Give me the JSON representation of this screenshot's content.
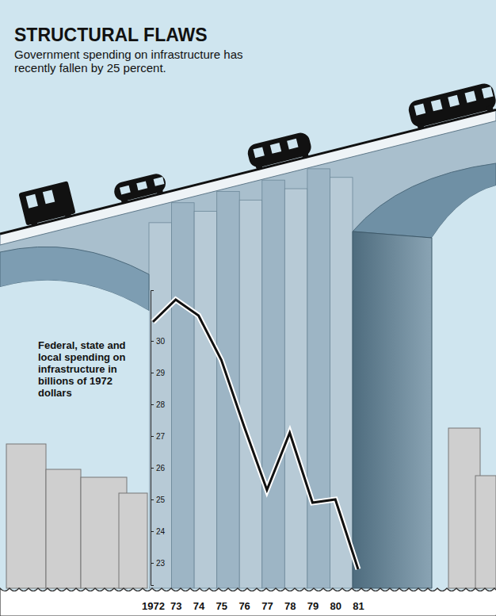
{
  "chart_data": {
    "type": "line",
    "title": "STRUCTURAL FLAWS",
    "subtitle": "Government spending on infrastructure has recently fallen by 25 percent.",
    "ylabel": "Federal, state and local spending on infrastructure in billions of 1972 dollars",
    "categories": [
      "1972",
      "73",
      "74",
      "75",
      "76",
      "77",
      "78",
      "79",
      "80",
      "81"
    ],
    "values": [
      30.6,
      31.3,
      30.8,
      29.4,
      27.3,
      25.3,
      27.1,
      24.9,
      25.0,
      22.8
    ],
    "color": "#111111",
    "ylim": [
      22.3,
      31.6
    ],
    "yticks": [
      23,
      24,
      25,
      26,
      27,
      28,
      29,
      30
    ],
    "grid": false
  }
}
